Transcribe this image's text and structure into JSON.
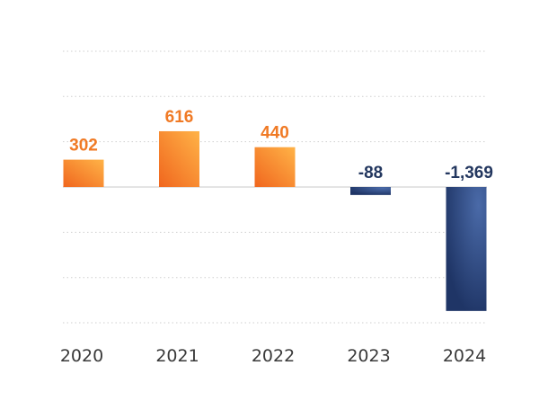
{
  "chart_data": {
    "type": "bar",
    "categories": [
      "2020",
      "2021",
      "2022",
      "2023",
      "2024"
    ],
    "values": [
      302,
      616,
      440,
      -88,
      -1369
    ],
    "value_labels": [
      "302",
      "616",
      "440",
      "-88",
      "-1,369"
    ],
    "title": "",
    "xlabel": "",
    "ylabel": "",
    "ylim": [
      -1500,
      1500
    ],
    "grid": true,
    "legend": "none",
    "colors": {
      "positive_light": "#ffb347",
      "positive_dark": "#f0661e",
      "positive_label": "#f07a25",
      "negative_light": "#4a6aa8",
      "negative_dark": "#1f3566",
      "negative_label": "#23375f"
    }
  }
}
